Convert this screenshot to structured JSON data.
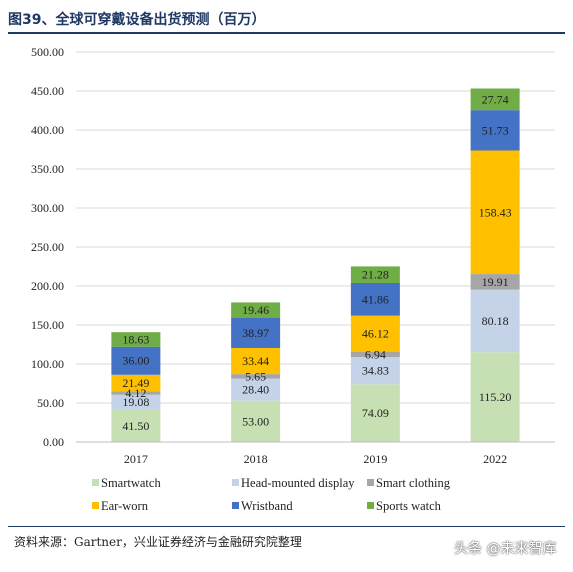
{
  "figure": {
    "title": "图39、全球可穿戴设备出货预测（百万）",
    "source": "资料来源：Gartner，兴业证券经济与金融研究院整理",
    "watermark": "头条 @未来智库"
  },
  "chart_data": {
    "type": "bar",
    "stacked": true,
    "categories": [
      "2017",
      "2018",
      "2019",
      "2022"
    ],
    "ylim": [
      0,
      500
    ],
    "yticks": [
      "0.00",
      "50.00",
      "100.00",
      "150.00",
      "200.00",
      "250.00",
      "300.00",
      "350.00",
      "400.00",
      "450.00",
      "500.00"
    ],
    "grid": true,
    "legend_position": "bottom",
    "series": [
      {
        "name": "Smartwatch",
        "color": "#c6e0b4",
        "values": [
          41.5,
          53.0,
          74.09,
          115.2
        ],
        "labels": [
          "41.50",
          "53.00",
          "74.09",
          "115.20"
        ]
      },
      {
        "name": "Head-mounted display",
        "color": "#c5d3e9",
        "values": [
          19.08,
          28.4,
          34.83,
          80.18
        ],
        "labels": [
          "19.08",
          "28.40",
          "34.83",
          "80.18"
        ]
      },
      {
        "name": "Smart clothing",
        "color": "#a6a6a6",
        "values": [
          4.12,
          5.65,
          6.94,
          19.91
        ],
        "labels": [
          "4.12",
          "5.65",
          "6.94",
          "19.91"
        ]
      },
      {
        "name": "Ear-worn",
        "color": "#ffc000",
        "values": [
          21.49,
          33.44,
          46.12,
          158.43
        ],
        "labels": [
          "21.49",
          "33.44",
          "46.12",
          "158.43"
        ]
      },
      {
        "name": "Wristband",
        "color": "#4472c4",
        "values": [
          36.0,
          38.97,
          41.86,
          51.73
        ],
        "labels": [
          "36.00",
          "38.97",
          "41.86",
          "51.73"
        ]
      },
      {
        "name": "Sports watch",
        "color": "#70ad47",
        "values": [
          18.63,
          19.46,
          21.28,
          27.74
        ],
        "labels": [
          "18.63",
          "19.46",
          "21.28",
          "27.74"
        ]
      }
    ]
  }
}
